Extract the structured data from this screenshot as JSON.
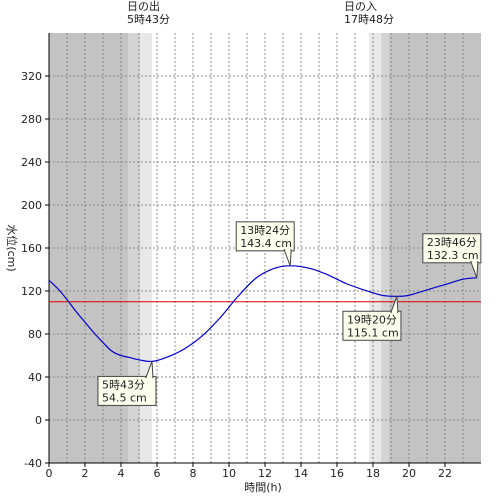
{
  "chart_data": {
    "type": "line",
    "xlabel": "時間(h)",
    "ylabel": "水位(cm)",
    "xlim": [
      0,
      24
    ],
    "ylim": [
      -40,
      360
    ],
    "x_ticks": [
      0,
      2,
      4,
      6,
      8,
      10,
      12,
      14,
      16,
      18,
      20,
      22
    ],
    "y_ticks": [
      -40,
      0,
      40,
      80,
      120,
      160,
      200,
      240,
      280,
      320
    ],
    "reference_line": {
      "value": 110,
      "color": "#dd0000"
    },
    "sunrise": {
      "title": "日の出",
      "time_label": "5時43分",
      "hour": 5.72
    },
    "sunset": {
      "title": "日の入",
      "time_label": "17時48分",
      "hour": 17.8
    },
    "series": [
      {
        "color": "#0000cc",
        "points": [
          [
            0.0,
            130.0
          ],
          [
            0.5,
            122.0
          ],
          [
            1.0,
            112.0
          ],
          [
            1.5,
            101.0
          ],
          [
            2.0,
            91.0
          ],
          [
            2.5,
            81.0
          ],
          [
            3.0,
            72.0
          ],
          [
            3.5,
            64.0
          ],
          [
            4.0,
            60.0
          ],
          [
            4.5,
            58.0
          ],
          [
            5.0,
            56.0
          ],
          [
            5.72,
            54.5
          ],
          [
            6.5,
            58.0
          ],
          [
            7.5,
            66.0
          ],
          [
            8.5,
            78.0
          ],
          [
            9.5,
            95.0
          ],
          [
            10.5,
            115.0
          ],
          [
            11.5,
            132.0
          ],
          [
            12.5,
            141.0
          ],
          [
            13.4,
            143.4
          ],
          [
            14.5,
            141.0
          ],
          [
            15.5,
            135.0
          ],
          [
            16.5,
            127.0
          ],
          [
            17.5,
            121.0
          ],
          [
            18.5,
            116.0
          ],
          [
            19.33,
            115.1
          ],
          [
            20.0,
            116.0
          ],
          [
            21.0,
            121.0
          ],
          [
            22.0,
            126.0
          ],
          [
            23.0,
            131.0
          ],
          [
            23.77,
            132.3
          ]
        ]
      }
    ],
    "annotations": [
      {
        "line1": "5時43分",
        "line2": "54.5 cm",
        "x": 5.72,
        "y": 54.5,
        "box": "below-left"
      },
      {
        "line1": "13時24分",
        "line2": "143.4 cm",
        "x": 13.4,
        "y": 143.4,
        "box": "above-left"
      },
      {
        "line1": "19時20分",
        "line2": "115.1 cm",
        "x": 19.33,
        "y": 115.1,
        "box": "below-left"
      },
      {
        "line1": "23時46分",
        "line2": "132.3 cm",
        "x": 23.77,
        "y": 132.3,
        "box": "above-left"
      }
    ]
  }
}
